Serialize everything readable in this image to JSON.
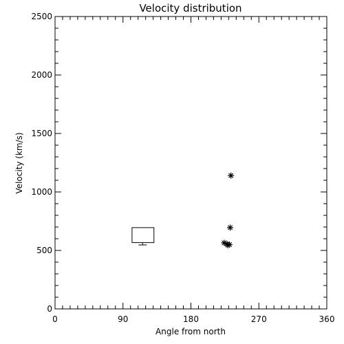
{
  "chart_data": {
    "type": "scatter",
    "title": "Velocity distribution",
    "xlabel": "Angle from north",
    "ylabel": "Velocity (km/s)",
    "xlim": [
      0,
      360
    ],
    "ylim": [
      0,
      2500
    ],
    "xticks": [
      0,
      90,
      180,
      270,
      360
    ],
    "yticks": [
      0,
      500,
      1000,
      1500,
      2000,
      2500
    ],
    "grid": false,
    "points": [
      {
        "x": 233,
        "y": 1140
      },
      {
        "x": 232,
        "y": 695
      },
      {
        "x": 224,
        "y": 565
      },
      {
        "x": 228,
        "y": 555
      },
      {
        "x": 229,
        "y": 545
      },
      {
        "x": 231,
        "y": 550
      }
    ],
    "box": {
      "x_low": 102,
      "x_high": 131,
      "q1": 567,
      "q3": 695,
      "whisker_low": 547,
      "whisker_x": 116
    }
  }
}
